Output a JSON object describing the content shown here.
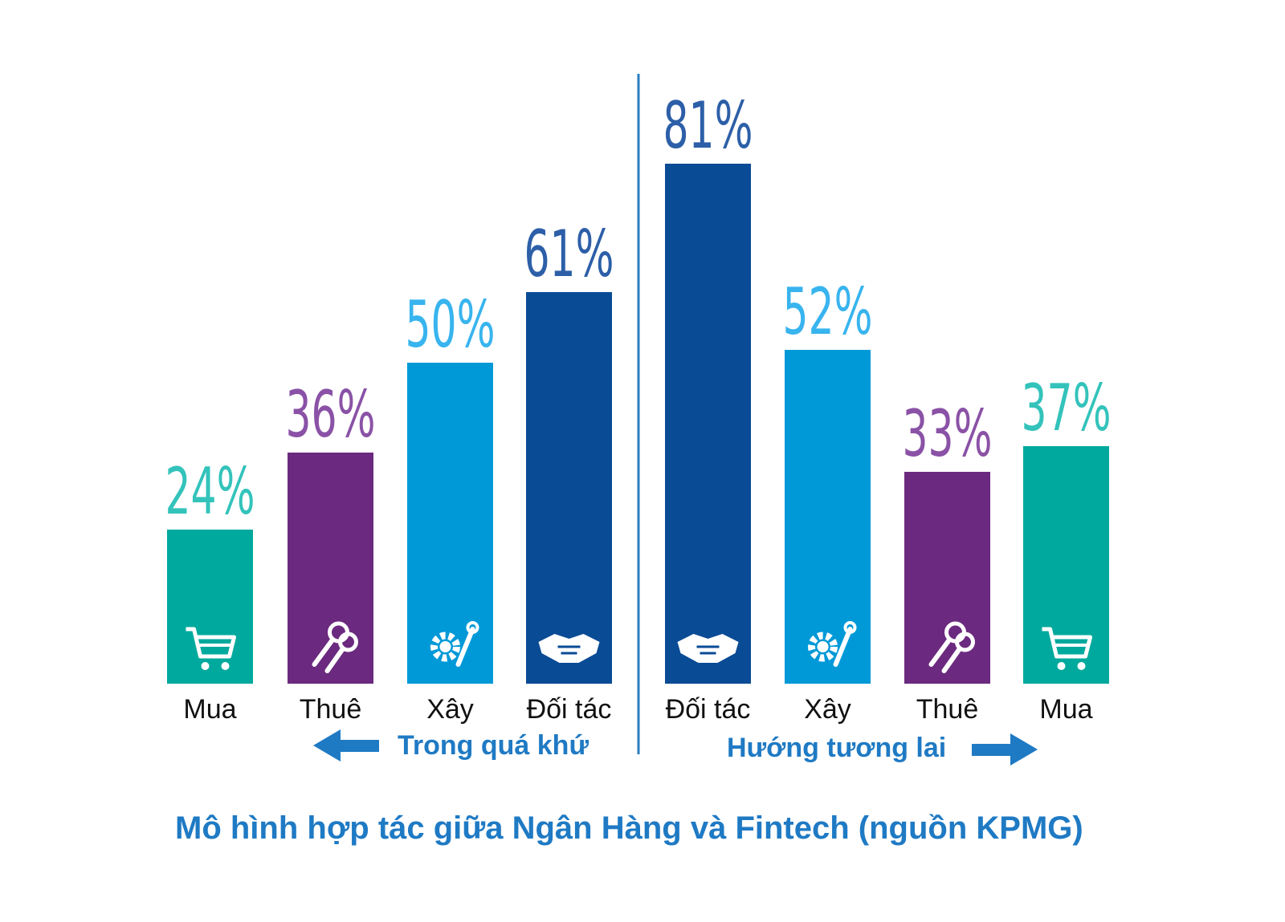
{
  "chart_data": {
    "type": "bar",
    "title": "Mô hình hợp tác giữa Ngân Hàng và Fintech (nguồn KPMG)",
    "ylim": [
      0,
      100
    ],
    "groups": [
      {
        "name": "Trong quá khứ",
        "categories": [
          "Mua",
          "Thuê",
          "Xây",
          "Đối tác"
        ],
        "values": [
          24,
          36,
          50,
          61
        ],
        "labels": [
          "24%",
          "36%",
          "50%",
          "61%"
        ],
        "icons": [
          "cart-icon",
          "keys-icon",
          "gear-wrench-icon",
          "handshake-icon"
        ],
        "colors": [
          "#00a99d",
          "#6b2a7f",
          "#0099d8",
          "#0a4b95"
        ],
        "label_colors": [
          "#33c3bb",
          "#8a52a6",
          "#38b4ee",
          "#2d5fa8"
        ]
      },
      {
        "name": "Hướng tương lai",
        "categories": [
          "Đối tác",
          "Xây",
          "Thuê",
          "Mua"
        ],
        "values": [
          81,
          52,
          33,
          37
        ],
        "labels": [
          "81%",
          "52%",
          "33%",
          "37%"
        ],
        "icons": [
          "handshake-icon",
          "gear-wrench-icon",
          "keys-icon",
          "cart-icon"
        ],
        "colors": [
          "#0a4b95",
          "#0099d8",
          "#6b2a7f",
          "#00a99d"
        ],
        "label_colors": [
          "#2d5fa8",
          "#38b4ee",
          "#8a52a6",
          "#33c3bb"
        ]
      }
    ],
    "legend": {
      "past": "Trong quá khứ",
      "future": "Hướng tương lai",
      "accent": "#1f7ac4"
    }
  }
}
